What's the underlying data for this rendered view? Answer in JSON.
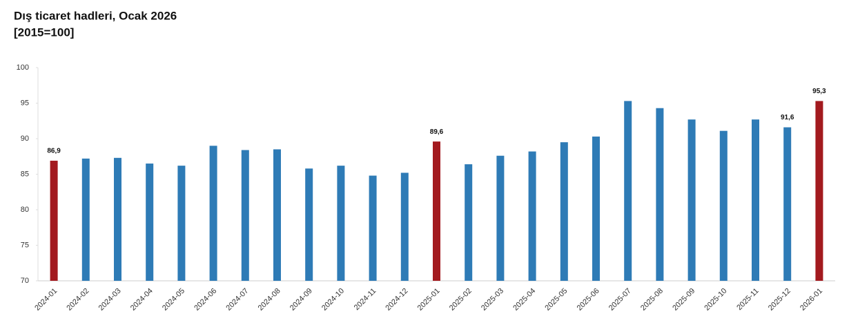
{
  "chart_data": {
    "type": "bar",
    "title": "Dış ticaret hadleri, Ocak 2026",
    "subtitle": "[2015=100]",
    "categories": [
      "2024-01",
      "2024-02",
      "2024-03",
      "2024-04",
      "2024-05",
      "2024-06",
      "2024-07",
      "2024-08",
      "2024-09",
      "2024-10",
      "2024-11",
      "2024-12",
      "2025-01",
      "2025-02",
      "2025-03",
      "2025-04",
      "2025-05",
      "2025-06",
      "2025-07",
      "2025-08",
      "2025-09",
      "2025-10",
      "2025-11",
      "2025-12",
      "2026-01"
    ],
    "values": [
      86.9,
      87.2,
      87.3,
      86.5,
      86.2,
      89.0,
      88.4,
      88.5,
      85.8,
      86.2,
      84.8,
      85.2,
      89.6,
      86.4,
      87.6,
      88.2,
      89.5,
      90.3,
      95.3,
      94.3,
      92.7,
      91.1,
      92.7,
      91.6,
      95.3
    ],
    "value_labels": [
      "86,9",
      null,
      null,
      null,
      null,
      null,
      null,
      null,
      null,
      null,
      null,
      null,
      "89,6",
      null,
      null,
      null,
      null,
      null,
      null,
      null,
      null,
      null,
      null,
      "91,6",
      "95,3"
    ],
    "colors": [
      "#a31a1f",
      "#2e7bb6",
      "#2e7bb6",
      "#2e7bb6",
      "#2e7bb6",
      "#2e7bb6",
      "#2e7bb6",
      "#2e7bb6",
      "#2e7bb6",
      "#2e7bb6",
      "#2e7bb6",
      "#2e7bb6",
      "#a31a1f",
      "#2e7bb6",
      "#2e7bb6",
      "#2e7bb6",
      "#2e7bb6",
      "#2e7bb6",
      "#2e7bb6",
      "#2e7bb6",
      "#2e7bb6",
      "#2e7bb6",
      "#2e7bb6",
      "#2e7bb6",
      "#a31a1f"
    ],
    "ylim": [
      70,
      100
    ],
    "yticks": [
      70,
      75,
      80,
      85,
      90,
      95,
      100
    ],
    "grid": false
  }
}
